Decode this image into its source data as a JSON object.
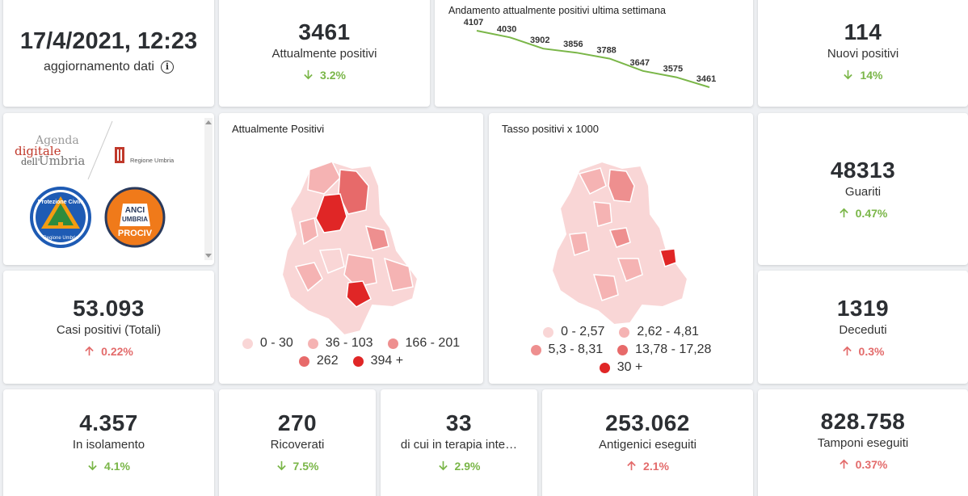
{
  "header": {
    "update_date": "17/4/2021, 12:23",
    "update_label": "aggiornamento dati",
    "info_glyph": "i"
  },
  "kpis": {
    "attualmente_positivi": {
      "value": "3461",
      "label": "Attualmente positivi",
      "change": "3.2%",
      "direction": "down"
    },
    "nuovi_positivi": {
      "value": "114",
      "label": "Nuovi positivi",
      "change": "14%",
      "direction": "down"
    },
    "guariti": {
      "value": "48313",
      "label": "Guariti",
      "change": "0.47%",
      "direction": "up"
    },
    "casi_totali": {
      "value": "53.093",
      "label": "Casi positivi (Totali)",
      "change": "0.22%",
      "direction": "up"
    },
    "deceduti": {
      "value": "1319",
      "label": "Deceduti",
      "change": "0.3%",
      "direction": "up"
    },
    "isolamento": {
      "value": "4.357",
      "label": "In isolamento",
      "change": "4.1%",
      "direction": "down"
    },
    "ricoverati": {
      "value": "270",
      "label": "Ricoverati",
      "change": "7.5%",
      "direction": "down"
    },
    "terapia_intensiva": {
      "value": "33",
      "label": "di cui in terapia inte…",
      "change": "2.9%",
      "direction": "down"
    },
    "antigenici": {
      "value": "253.062",
      "label": "Antigenici eseguiti",
      "change": "2.1%",
      "direction": "up"
    },
    "tamponi": {
      "value": "828.758",
      "label": "Tamponi eseguiti",
      "change": "0.37%",
      "direction": "up"
    }
  },
  "logos": {
    "agenda_line1": "Agenda",
    "agenda_line2": "digitale",
    "agenda_line3a": "dell'",
    "agenda_line3b": "Umbria",
    "regione": "Regione Umbria",
    "protezione_top": "Protezione Civile",
    "protezione_bottom": "Regione Umbria",
    "anci_line1": "ANCI",
    "anci_line2": "UMBRIA",
    "anci_line3": "PROCIV"
  },
  "maps": {
    "positivi": {
      "title": "Attualmente Positivi",
      "legend": [
        {
          "label": "0 - 30",
          "color": "#f9d6d6"
        },
        {
          "label": "36 - 103",
          "color": "#f5b3b3"
        },
        {
          "label": "166 - 201",
          "color": "#ee8f8f"
        },
        {
          "label": "262",
          "color": "#e76a6a"
        },
        {
          "label": "394 +",
          "color": "#e02626"
        }
      ]
    },
    "tasso": {
      "title": "Tasso positivi x 1000",
      "legend": [
        {
          "label": "0 - 2,57",
          "color": "#f9d6d6"
        },
        {
          "label": "2,62 - 4,81",
          "color": "#f5b3b3"
        },
        {
          "label": "5,3 - 8,31",
          "color": "#ee8f8f"
        },
        {
          "label": "13,78 - 17,28",
          "color": "#e76a6a"
        },
        {
          "label": "30 +",
          "color": "#e02626"
        }
      ]
    }
  },
  "chart_data": {
    "type": "line",
    "title": "Andamento attualmente positivi ultima settimana",
    "x": [
      1,
      2,
      3,
      4,
      5,
      6,
      7,
      8
    ],
    "values": [
      4107,
      4030,
      3902,
      3856,
      3788,
      3647,
      3575,
      3461
    ],
    "ylim": [
      3461,
      4107
    ],
    "xlabel": "",
    "ylabel": "",
    "line_color": "#7ab648"
  },
  "colors": {
    "down": "#7ab648",
    "up": "#e36b6b"
  }
}
